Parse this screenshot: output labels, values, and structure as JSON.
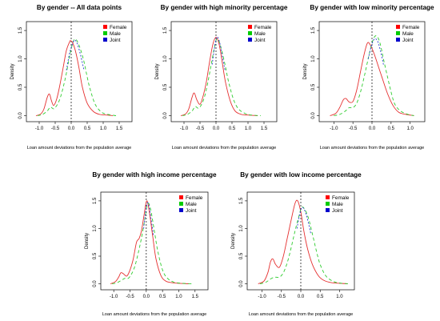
{
  "chart_data": [
    {
      "type": "line",
      "title": "By gender -- All data points",
      "xlabel": "Loan amount deviations from the population average",
      "ylabel": "Density",
      "xlim": [
        -1.3,
        1.8
      ],
      "ylim": [
        -0.05,
        1.6
      ],
      "xticks": [
        "-1.0",
        "-0.5",
        "0.0",
        "0.5",
        "1.0",
        "1.5"
      ],
      "yticks": [
        "0.0",
        "0.5",
        "1.0",
        "1.5"
      ],
      "xtick_values": [
        -1.0,
        -0.5,
        0.0,
        0.5,
        1.0,
        1.5
      ],
      "ytick_values": [
        0.0,
        0.5,
        1.0,
        1.5
      ],
      "vline": 0.0,
      "legend": [
        {
          "label": "Female",
          "color": "#ff0000"
        },
        {
          "label": "Male",
          "color": "#00cc00"
        },
        {
          "label": "Joint",
          "color": "#0000cc"
        }
      ],
      "legend_position": "top-right",
      "series": [
        {
          "name": "Female",
          "color": "#e53030",
          "dash": "solid",
          "x": [
            -1.1,
            -0.95,
            -0.85,
            -0.75,
            -0.68,
            -0.62,
            -0.55,
            -0.45,
            -0.35,
            -0.25,
            -0.15,
            -0.05,
            -0.02,
            0.05,
            0.15,
            0.25,
            0.35,
            0.5,
            0.7,
            0.9,
            1.1,
            1.3
          ],
          "y": [
            0.0,
            0.03,
            0.12,
            0.32,
            0.38,
            0.27,
            0.18,
            0.3,
            0.55,
            0.85,
            1.15,
            1.3,
            1.32,
            1.28,
            1.1,
            0.82,
            0.5,
            0.22,
            0.07,
            0.02,
            0.01,
            0.0
          ]
        },
        {
          "name": "Male",
          "color": "#2ecc2e",
          "dash": "4,3",
          "x": [
            -1.05,
            -0.9,
            -0.75,
            -0.65,
            -0.55,
            -0.45,
            -0.35,
            -0.25,
            -0.15,
            -0.05,
            0.05,
            0.12,
            0.2,
            0.3,
            0.4,
            0.5,
            0.6,
            0.75,
            0.95,
            1.15,
            1.4
          ],
          "y": [
            0.0,
            0.02,
            0.08,
            0.15,
            0.12,
            0.18,
            0.3,
            0.5,
            0.75,
            1.05,
            1.28,
            1.35,
            1.3,
            1.15,
            0.95,
            0.68,
            0.45,
            0.2,
            0.06,
            0.02,
            0.0
          ]
        },
        {
          "name": "Joint",
          "color": "#2a3ad0",
          "dash": "2,2",
          "x": [
            -0.15,
            -0.05,
            0.05,
            0.12,
            0.2,
            0.3,
            0.4
          ],
          "y": [
            0.8,
            1.1,
            1.28,
            1.33,
            1.25,
            1.05,
            0.8
          ]
        }
      ]
    },
    {
      "type": "line",
      "title": "By gender with high minority percentage",
      "xlabel": "Loan amount deviations from the population average",
      "ylabel": "Density",
      "xlim": [
        -1.3,
        1.8
      ],
      "ylim": [
        -0.05,
        1.6
      ],
      "xticks": [
        "-1.0",
        "-0.5",
        "0.0",
        "0.5",
        "1.0",
        "1.5"
      ],
      "yticks": [
        "0.0",
        "0.5",
        "1.0",
        "1.5"
      ],
      "xtick_values": [
        -1.0,
        -0.5,
        0.0,
        0.5,
        1.0,
        1.5
      ],
      "ytick_values": [
        0.0,
        0.5,
        1.0,
        1.5
      ],
      "vline": 0.0,
      "legend": [
        {
          "label": "Female",
          "color": "#ff0000"
        },
        {
          "label": "Male",
          "color": "#00cc00"
        },
        {
          "label": "Joint",
          "color": "#0000cc"
        }
      ],
      "legend_position": "top-right",
      "series": [
        {
          "name": "Female",
          "color": "#e53030",
          "dash": "solid",
          "x": [
            -1.1,
            -0.95,
            -0.85,
            -0.75,
            -0.68,
            -0.6,
            -0.5,
            -0.4,
            -0.3,
            -0.2,
            -0.1,
            0.0,
            0.1,
            0.2,
            0.3,
            0.45,
            0.6,
            0.8,
            1.0,
            1.3
          ],
          "y": [
            0.0,
            0.03,
            0.12,
            0.32,
            0.4,
            0.28,
            0.2,
            0.35,
            0.6,
            0.95,
            1.25,
            1.38,
            1.25,
            0.92,
            0.58,
            0.25,
            0.08,
            0.02,
            0.01,
            0.0
          ]
        },
        {
          "name": "Male",
          "color": "#2ecc2e",
          "dash": "4,3",
          "x": [
            -1.05,
            -0.9,
            -0.75,
            -0.65,
            -0.55,
            -0.45,
            -0.35,
            -0.25,
            -0.15,
            -0.05,
            0.02,
            0.1,
            0.2,
            0.3,
            0.4,
            0.55,
            0.7,
            0.9,
            1.1,
            1.4
          ],
          "y": [
            0.0,
            0.02,
            0.08,
            0.16,
            0.13,
            0.2,
            0.35,
            0.6,
            0.9,
            1.2,
            1.35,
            1.3,
            1.1,
            0.85,
            0.58,
            0.28,
            0.12,
            0.04,
            0.01,
            0.0
          ]
        },
        {
          "name": "Joint",
          "color": "#2a3ad0",
          "dash": "2,2",
          "x": [
            -0.12,
            -0.05,
            0.02,
            0.1,
            0.18,
            0.28
          ],
          "y": [
            0.9,
            1.18,
            1.38,
            1.32,
            1.1,
            0.8
          ]
        }
      ]
    },
    {
      "type": "line",
      "title": "By gender with low minority percentage",
      "xlabel": "Loan amount deviations from the population average",
      "ylabel": "Density",
      "xlim": [
        -1.3,
        1.3
      ],
      "ylim": [
        -0.05,
        1.6
      ],
      "xticks": [
        "-1.0",
        "-0.5",
        "0.0",
        "0.5",
        "1.0"
      ],
      "yticks": [
        "0.0",
        "0.5",
        "1.0",
        "1.5"
      ],
      "xtick_values": [
        -1.0,
        -0.5,
        0.0,
        0.5,
        1.0
      ],
      "ytick_values": [
        0.0,
        0.5,
        1.0,
        1.5
      ],
      "vline": 0.0,
      "legend": [
        {
          "label": "Female",
          "color": "#ff0000"
        },
        {
          "label": "Male",
          "color": "#00cc00"
        },
        {
          "label": "Joint",
          "color": "#0000cc"
        }
      ],
      "legend_position": "top-right",
      "series": [
        {
          "name": "Female",
          "color": "#e53030",
          "dash": "solid",
          "x": [
            -1.1,
            -0.95,
            -0.85,
            -0.75,
            -0.68,
            -0.6,
            -0.5,
            -0.4,
            -0.3,
            -0.2,
            -0.12,
            -0.05,
            0.05,
            0.15,
            0.25,
            0.4,
            0.55,
            0.7,
            0.9,
            1.1
          ],
          "y": [
            0.0,
            0.04,
            0.14,
            0.28,
            0.3,
            0.24,
            0.25,
            0.45,
            0.78,
            1.1,
            1.28,
            1.25,
            1.1,
            0.9,
            0.7,
            0.4,
            0.18,
            0.06,
            0.02,
            0.0
          ]
        },
        {
          "name": "Male",
          "color": "#2ecc2e",
          "dash": "4,3",
          "x": [
            -1.0,
            -0.85,
            -0.7,
            -0.6,
            -0.5,
            -0.4,
            -0.3,
            -0.2,
            -0.1,
            0.0,
            0.08,
            0.15,
            0.22,
            0.3,
            0.4,
            0.5,
            0.6,
            0.75,
            0.95,
            1.1
          ],
          "y": [
            0.0,
            0.02,
            0.08,
            0.14,
            0.14,
            0.22,
            0.42,
            0.7,
            1.0,
            1.28,
            1.4,
            1.38,
            1.25,
            1.0,
            0.7,
            0.42,
            0.2,
            0.08,
            0.02,
            0.0
          ]
        },
        {
          "name": "Joint",
          "color": "#2a3ad0",
          "dash": "2,2",
          "x": [
            -0.1,
            -0.02,
            0.06,
            0.14,
            0.22,
            0.3
          ],
          "y": [
            1.0,
            1.22,
            1.35,
            1.32,
            1.15,
            0.9
          ]
        }
      ]
    },
    {
      "type": "line",
      "title": "By gender with high income percentage",
      "xlabel": "Loan amount deviations from the population average",
      "ylabel": "Density",
      "xlim": [
        -1.3,
        1.8
      ],
      "ylim": [
        -0.05,
        1.6
      ],
      "xticks": [
        "-1.0",
        "-0.5",
        "0.0",
        "0.5",
        "1.0",
        "1.5"
      ],
      "yticks": [
        "0.0",
        "0.5",
        "1.0",
        "1.5"
      ],
      "xtick_values": [
        -1.0,
        -0.5,
        0.0,
        0.5,
        1.0,
        1.5
      ],
      "ytick_values": [
        0.0,
        0.5,
        1.0,
        1.5
      ],
      "vline": 0.0,
      "legend": [
        {
          "label": "Female",
          "color": "#ff0000"
        },
        {
          "label": "Male",
          "color": "#00cc00"
        },
        {
          "label": "Joint",
          "color": "#0000cc"
        }
      ],
      "legend_position": "top-right",
      "series": [
        {
          "name": "Female",
          "color": "#e53030",
          "dash": "solid",
          "x": [
            -1.1,
            -0.95,
            -0.85,
            -0.78,
            -0.7,
            -0.6,
            -0.5,
            -0.4,
            -0.3,
            -0.22,
            -0.15,
            -0.08,
            0.0,
            0.05,
            0.12,
            0.2,
            0.3,
            0.45,
            0.6,
            0.8,
            1.0,
            1.3
          ],
          "y": [
            0.0,
            0.04,
            0.12,
            0.2,
            0.18,
            0.14,
            0.25,
            0.45,
            0.75,
            0.82,
            0.95,
            1.2,
            1.48,
            1.45,
            1.2,
            0.85,
            0.45,
            0.15,
            0.05,
            0.02,
            0.01,
            0.0
          ]
        },
        {
          "name": "Male",
          "color": "#2ecc2e",
          "dash": "4,3",
          "x": [
            -1.05,
            -0.9,
            -0.75,
            -0.65,
            -0.55,
            -0.45,
            -0.35,
            -0.25,
            -0.15,
            -0.05,
            0.02,
            0.08,
            0.15,
            0.25,
            0.35,
            0.5,
            0.65,
            0.85,
            1.1,
            1.4
          ],
          "y": [
            0.0,
            0.02,
            0.07,
            0.1,
            0.1,
            0.18,
            0.32,
            0.55,
            0.82,
            1.15,
            1.4,
            1.45,
            1.3,
            0.95,
            0.6,
            0.25,
            0.1,
            0.03,
            0.01,
            0.0
          ]
        },
        {
          "name": "Joint",
          "color": "#2a3ad0",
          "dash": "2,2",
          "x": [
            -0.08,
            -0.02,
            0.03,
            0.08,
            0.14,
            0.22
          ],
          "y": [
            1.0,
            1.3,
            1.46,
            1.42,
            1.2,
            0.88
          ]
        }
      ]
    },
    {
      "type": "line",
      "title": "By gender with low income percentage",
      "xlabel": "Loan amount deviations from the population average",
      "ylabel": "Density",
      "xlim": [
        -1.3,
        1.3
      ],
      "ylim": [
        -0.05,
        1.6
      ],
      "xticks": [
        "-1.0",
        "-0.5",
        "0.0",
        "0.5",
        "1.0"
      ],
      "yticks": [
        "0.0",
        "0.5",
        "1.0",
        "1.5"
      ],
      "xtick_values": [
        -1.0,
        -0.5,
        0.0,
        0.5,
        1.0
      ],
      "ytick_values": [
        0.0,
        0.5,
        1.0,
        1.5
      ],
      "vline": 0.0,
      "legend": [
        {
          "label": "Female",
          "color": "#ff0000"
        },
        {
          "label": "Male",
          "color": "#00cc00"
        },
        {
          "label": "Joint",
          "color": "#0000cc"
        }
      ],
      "legend_position": "top-right",
      "series": [
        {
          "name": "Female",
          "color": "#e53030",
          "dash": "solid",
          "x": [
            -1.1,
            -0.95,
            -0.85,
            -0.78,
            -0.72,
            -0.65,
            -0.55,
            -0.45,
            -0.35,
            -0.25,
            -0.15,
            -0.08,
            0.0,
            0.08,
            0.18,
            0.3,
            0.45,
            0.6,
            0.8,
            1.0,
            1.2
          ],
          "y": [
            0.0,
            0.05,
            0.2,
            0.4,
            0.45,
            0.35,
            0.3,
            0.5,
            0.82,
            1.15,
            1.45,
            1.5,
            1.3,
            0.95,
            0.62,
            0.35,
            0.15,
            0.06,
            0.02,
            0.01,
            0.0
          ]
        },
        {
          "name": "Male",
          "color": "#2ecc2e",
          "dash": "4,3",
          "x": [
            -1.05,
            -0.9,
            -0.75,
            -0.65,
            -0.55,
            -0.45,
            -0.35,
            -0.25,
            -0.15,
            -0.05,
            0.02,
            0.1,
            0.2,
            0.3,
            0.4,
            0.5,
            0.65,
            0.85,
            1.05,
            1.25
          ],
          "y": [
            0.0,
            0.03,
            0.1,
            0.12,
            0.12,
            0.2,
            0.38,
            0.65,
            0.95,
            1.22,
            1.38,
            1.35,
            1.18,
            0.9,
            0.6,
            0.35,
            0.14,
            0.04,
            0.01,
            0.0
          ]
        },
        {
          "name": "Joint",
          "color": "#2a3ad0",
          "dash": "2,2",
          "x": [
            -0.1,
            -0.03,
            0.03,
            0.1,
            0.18,
            0.26
          ],
          "y": [
            1.0,
            1.25,
            1.38,
            1.33,
            1.15,
            0.9
          ]
        }
      ]
    }
  ]
}
